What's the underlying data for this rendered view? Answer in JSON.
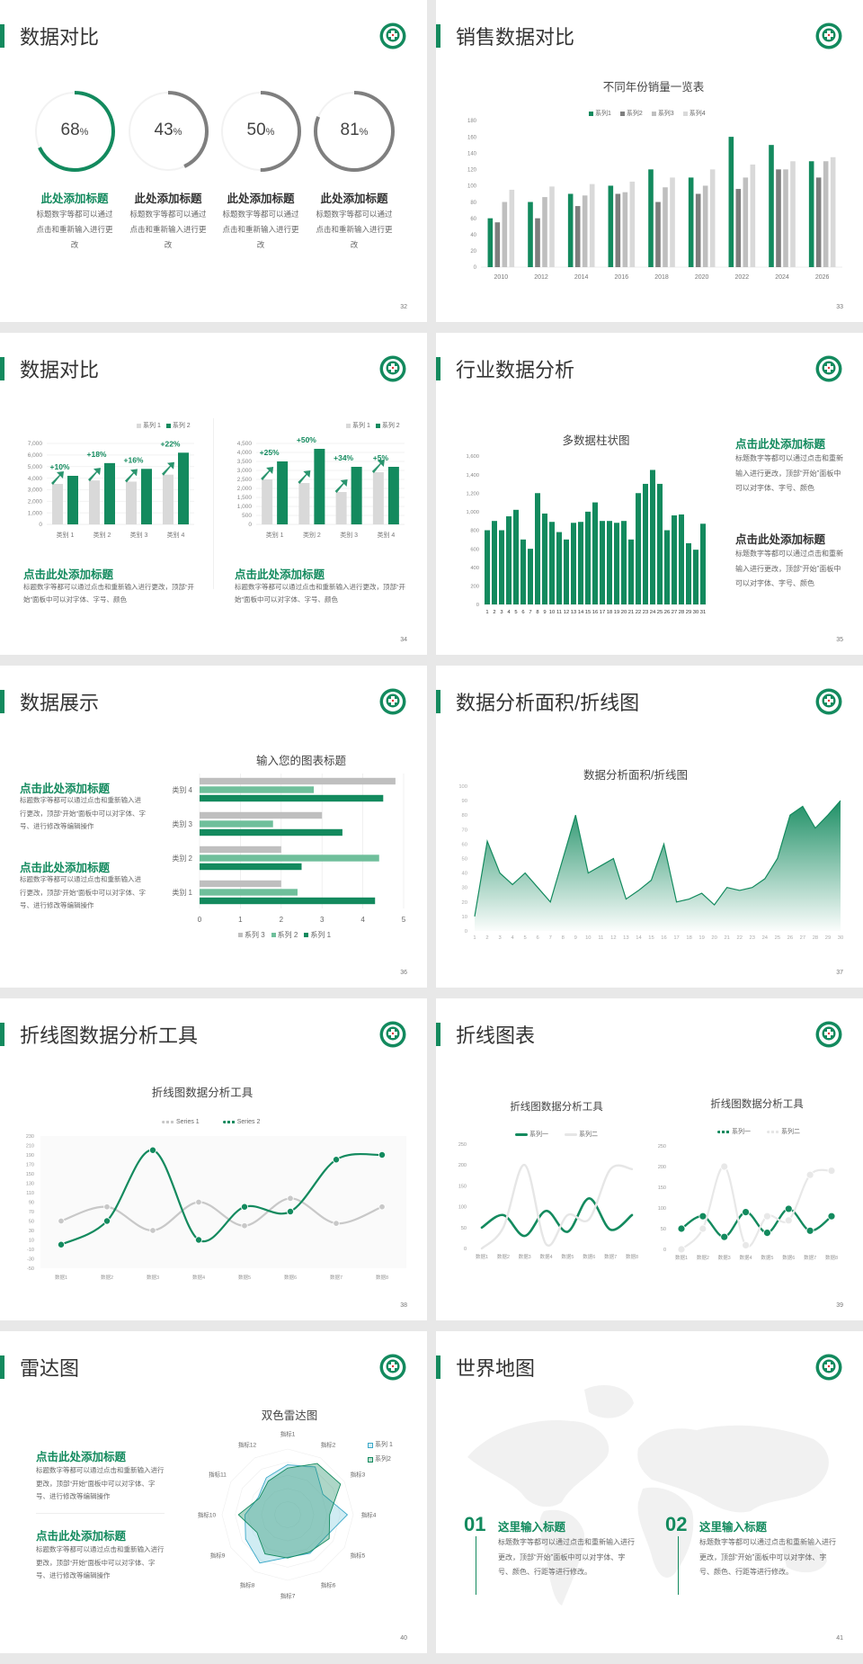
{
  "colors": {
    "accent": "#138a5e",
    "grey_dark": "#7f7f7f",
    "grey_mid": "#bfbfbf",
    "grey_light": "#d9d9d9",
    "green_light": "#6fbf9b",
    "radar_blue": "#3aa8c8"
  },
  "slides": [
    {
      "title": "数据对比",
      "page": "32",
      "rings": [
        {
          "value": 68,
          "unit": "%",
          "heading": "此处添加标题",
          "body": "标题数字等都可以通过点击和重新输入进行更改"
        },
        {
          "value": 43,
          "unit": "%",
          "heading": "此处添加标题",
          "body": "标题数字等都可以通过点击和重新输入进行更改"
        },
        {
          "value": 50,
          "unit": "%",
          "heading": "此处添加标题",
          "body": "标题数字等都可以通过点击和重新输入进行更改"
        },
        {
          "value": 81,
          "unit": "%",
          "heading": "此处添加标题",
          "body": "标题数字等都可以通过点击和重新输入进行更改"
        }
      ]
    },
    {
      "title": "销售数据对比",
      "page": "33"
    },
    {
      "title": "数据对比",
      "page": "34",
      "blocks": [
        {
          "heading": "点击此处添加标题",
          "body": "标题数字等都可以通过点击和重新输入进行更改，顶部“开始”面板中可以对字体、字号、颜色"
        },
        {
          "heading": "点击此处添加标题",
          "body": "标题数字等都可以通过点击和重新输入进行更改，顶部“开始”面板中可以对字体、字号、颜色"
        }
      ]
    },
    {
      "title": "行业数据分析",
      "page": "35",
      "blocks": [
        {
          "heading": "点击此处添加标题",
          "body": "标题数字等都可以通过点击和重新输入进行更改，顶部“开始”面板中可以对字体、字号、颜色"
        },
        {
          "heading": "点击此处添加标题",
          "body": "标题数字等都可以通过点击和重新输入进行更改，顶部“开始”面板中可以对字体、字号、颜色"
        }
      ]
    },
    {
      "title": "数据展示",
      "page": "36",
      "blocks": [
        {
          "heading": "点击此处添加标题",
          "body": "标题数字等都可以通过点击和重新输入进行更改，顶部“开始”面板中可以对字体、字号、进行修改等编辑操作"
        },
        {
          "heading": "点击此处添加标题",
          "body": "标题数字等都可以通过点击和重新输入进行更改，顶部“开始”面板中可以对字体、字号、进行修改等编辑操作"
        }
      ]
    },
    {
      "title": "数据分析面积/折线图",
      "page": "37"
    },
    {
      "title": "折线图数据分析工具",
      "page": "38"
    },
    {
      "title": "折线图表",
      "page": "39"
    },
    {
      "title": "雷达图",
      "page": "40",
      "blocks": [
        {
          "heading": "点击此处添加标题",
          "body": "标题数字等都可以通过点击和重新输入进行更改，顶部“开始”面板中可以对字体、字号、进行修改等编辑操作"
        },
        {
          "heading": "点击此处添加标题",
          "body": "标题数字等都可以通过点击和重新输入进行更改，顶部“开始”面板中可以对字体、字号、进行修改等编辑操作"
        }
      ]
    },
    {
      "title": "世界地图",
      "page": "41",
      "blocks": [
        {
          "number": "01",
          "heading": "这里输入标题",
          "body": "标题数字等都可以通过点击和重新输入进行更改，顶部“开始”面板中可以对字体、字号、颜色、行距等进行修改。"
        },
        {
          "number": "02",
          "heading": "这里输入标题",
          "body": "标题数字等都可以通过点击和重新输入进行更改，顶部“开始”面板中可以对字体、字号、颜色、行距等进行修改。"
        }
      ]
    }
  ],
  "chart_data": [
    {
      "type": "bar",
      "title": "不同年份销量一览表",
      "categories": [
        "2010",
        "2012",
        "2014",
        "2016",
        "2018",
        "2020",
        "2022",
        "2024",
        "2026"
      ],
      "series": [
        {
          "name": "系列1",
          "values": [
            60,
            80,
            90,
            100,
            120,
            110,
            160,
            150,
            130
          ]
        },
        {
          "name": "系列2",
          "values": [
            55,
            60,
            75,
            90,
            80,
            90,
            96,
            120,
            110
          ]
        },
        {
          "name": "系列3",
          "values": [
            80,
            86,
            88,
            92,
            98,
            100,
            110,
            120,
            130
          ]
        },
        {
          "name": "系列4",
          "values": [
            95,
            99,
            102,
            105,
            110,
            120,
            126,
            130,
            135
          ]
        }
      ],
      "ylim": [
        0,
        180
      ],
      "ytick_step": 20,
      "legend": "top",
      "grid": false
    },
    {
      "type": "bar",
      "categories": [
        "类别 1",
        "类别 2",
        "类别 3",
        "类别 4"
      ],
      "series": [
        {
          "name": "系列 1",
          "values": [
            3500,
            3800,
            3700,
            4300
          ]
        },
        {
          "name": "系列 2",
          "values": [
            4200,
            5300,
            4800,
            6200
          ]
        }
      ],
      "annotations": [
        "+10%",
        "+18%",
        "+16%",
        "+22%"
      ],
      "ylim": [
        0,
        7000
      ],
      "ytick_step": 1000,
      "legend": "top-right",
      "grid": true
    },
    {
      "type": "bar",
      "categories": [
        "类别 1",
        "类别 2",
        "类别 3",
        "类别 4"
      ],
      "series": [
        {
          "name": "系列 1",
          "values": [
            2500,
            2300,
            1800,
            2900
          ]
        },
        {
          "name": "系列 2",
          "values": [
            3500,
            4200,
            3200,
            3200
          ]
        }
      ],
      "annotations": [
        "+25%",
        "+50%",
        "+34%",
        "+5%"
      ],
      "ylim": [
        0,
        4500
      ],
      "ytick_step": 500,
      "legend": "top-right",
      "grid": true
    },
    {
      "type": "bar",
      "title": "多数据柱状图",
      "categories": [
        "1",
        "2",
        "3",
        "4",
        "5",
        "6",
        "7",
        "8",
        "9",
        "10",
        "11",
        "12",
        "13",
        "14",
        "15",
        "16",
        "17",
        "18",
        "19",
        "20",
        "21",
        "22",
        "23",
        "24",
        "25",
        "26",
        "27",
        "28",
        "29",
        "30",
        "31"
      ],
      "values": [
        800,
        900,
        800,
        950,
        1020,
        700,
        600,
        1200,
        980,
        890,
        780,
        700,
        880,
        890,
        1000,
        1100,
        900,
        900,
        880,
        900,
        700,
        1200,
        1300,
        1450,
        1300,
        800,
        960,
        970,
        660,
        590,
        870
      ],
      "ylim": [
        0,
        1600
      ],
      "ytick_step": 200,
      "grid": false
    },
    {
      "type": "bar",
      "orientation": "horizontal",
      "title": "输入您的图表标题",
      "categories": [
        "类别 1",
        "类别 2",
        "类别 3",
        "类别 4"
      ],
      "series": [
        {
          "name": "系列 1",
          "values": [
            4.3,
            2.5,
            3.5,
            4.5
          ]
        },
        {
          "name": "系列 2",
          "values": [
            2.4,
            4.4,
            1.8,
            2.8
          ]
        },
        {
          "name": "系列 3",
          "values": [
            2,
            2,
            3,
            4.8
          ]
        }
      ],
      "xlim": [
        0,
        5
      ],
      "xtick_step": 1,
      "legend": "bottom",
      "grid": true
    },
    {
      "type": "area",
      "title": "数据分析面积/折线图",
      "x": [
        "1",
        "2",
        "3",
        "4",
        "5",
        "6",
        "7",
        "8",
        "9",
        "10",
        "11",
        "12",
        "13",
        "14",
        "15",
        "16",
        "17",
        "18",
        "19",
        "20",
        "21",
        "22",
        "23",
        "24",
        "25",
        "26",
        "27",
        "28",
        "29",
        "30"
      ],
      "values": [
        10,
        62,
        40,
        32,
        40,
        30,
        20,
        50,
        80,
        40,
        45,
        50,
        22,
        28,
        35,
        60,
        20,
        22,
        26,
        18,
        30,
        28,
        30,
        36,
        50,
        80,
        86,
        71,
        80,
        90
      ],
      "ylim": [
        0,
        100
      ],
      "ytick_step": 10,
      "grid": false
    },
    {
      "type": "line",
      "title": "折线图数据分析工具",
      "categories": [
        "数据1",
        "数据2",
        "数据3",
        "数据4",
        "数据5",
        "数据6",
        "数据7",
        "数据8"
      ],
      "series": [
        {
          "name": "Series 1",
          "values": [
            50,
            80,
            30,
            90,
            40,
            98,
            45,
            80
          ]
        },
        {
          "name": "Series 2",
          "values": [
            0,
            50,
            200,
            10,
            80,
            70,
            180,
            190
          ]
        }
      ],
      "ylim": [
        -50,
        230
      ],
      "ytick_step": 20,
      "smooth": true,
      "legend": "top"
    },
    {
      "type": "line",
      "title": "折线图数据分析工具",
      "categories": [
        "数据1",
        "数据2",
        "数据3",
        "数据4",
        "数据5",
        "数据6",
        "数据7",
        "数据8"
      ],
      "series": [
        {
          "name": "系列一",
          "values": [
            50,
            80,
            30,
            90,
            40,
            120,
            45,
            80
          ]
        },
        {
          "name": "系列二",
          "values": [
            0,
            50,
            200,
            10,
            80,
            70,
            190,
            190
          ]
        }
      ],
      "ylim": [
        0,
        250
      ],
      "ytick_step": 50,
      "smooth": true,
      "legend": "top"
    },
    {
      "type": "line",
      "title": "折线图数据分析工具",
      "categories": [
        "数据1",
        "数据2",
        "数据3",
        "数据4",
        "数据5",
        "数据6",
        "数据7",
        "数据8"
      ],
      "series": [
        {
          "name": "系列一",
          "values": [
            50,
            80,
            30,
            90,
            40,
            98,
            45,
            80
          ]
        },
        {
          "name": "系列二",
          "values": [
            0,
            50,
            200,
            10,
            80,
            70,
            180,
            190
          ]
        }
      ],
      "ylim": [
        0,
        250
      ],
      "ytick_step": 50,
      "smooth": true,
      "markers": true,
      "legend": "top"
    },
    {
      "type": "radar",
      "title": "双色雷达图",
      "categories": [
        "指标1",
        "指标2",
        "指标3",
        "指标4",
        "指标5",
        "指标6",
        "指标7",
        "指标8",
        "指标9",
        "指标10",
        "指标11",
        "指标12"
      ],
      "series": [
        {
          "name": "系列 1",
          "values": [
            76,
            84,
            62,
            91,
            67,
            68,
            65,
            85,
            74,
            65,
            52,
            65
          ]
        },
        {
          "name": "系列2",
          "values": [
            71,
            90,
            93,
            64,
            73,
            66,
            66,
            69,
            54,
            75,
            50,
            59
          ]
        }
      ],
      "rlim": [
        0,
        100
      ],
      "legend": "top-right"
    }
  ]
}
